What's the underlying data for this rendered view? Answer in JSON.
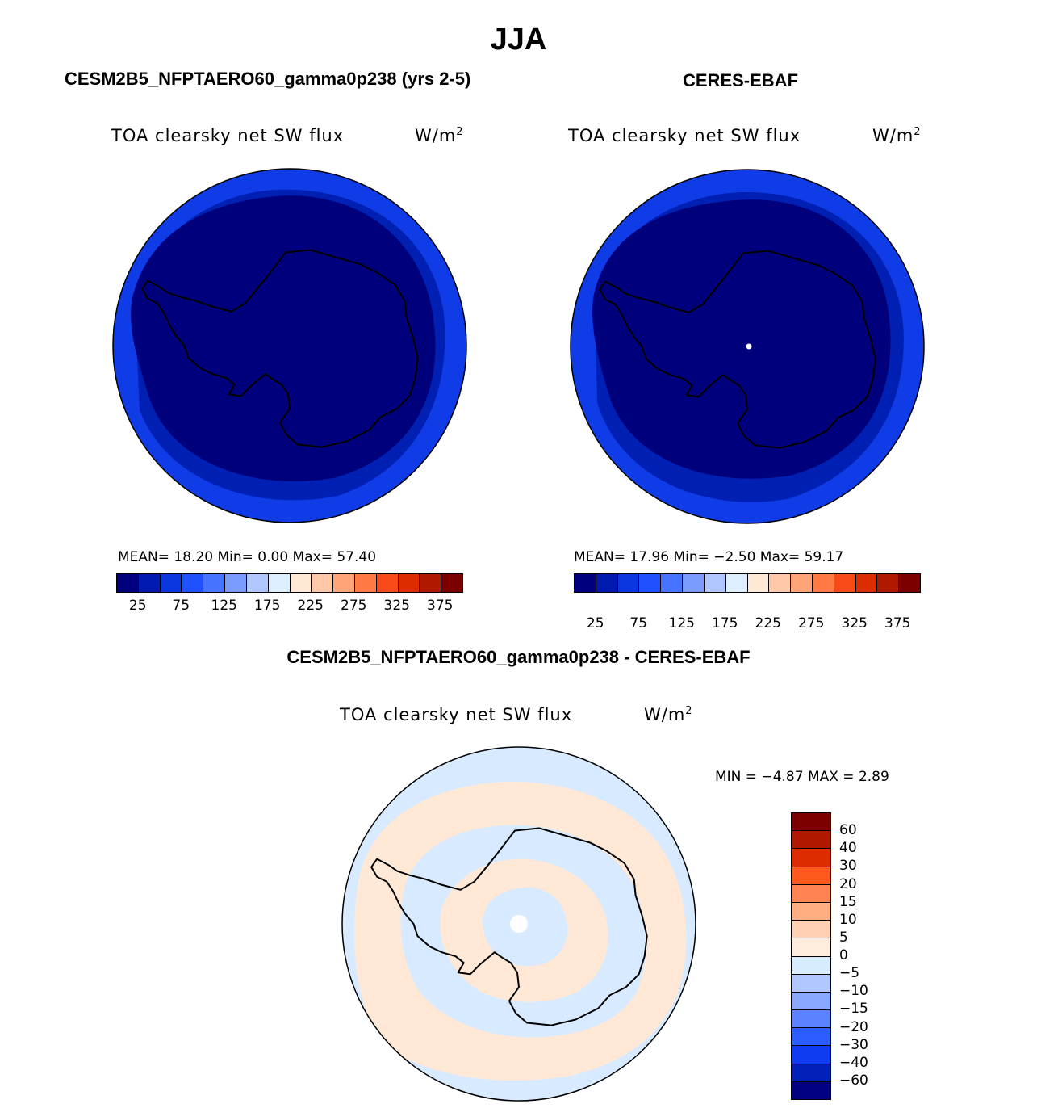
{
  "main_title": "JJA",
  "panels": [
    {
      "title": "CESM2B5_NFPTAERO60_gamma0p238 (yrs 2-5)",
      "var_label": "TOA clearsky net SW flux",
      "unit_base": "W/m",
      "unit_exp": "2",
      "stats": "MEAN=   18.20   Min=     0.00   Max=   57.40"
    },
    {
      "title": "CERES-EBAF",
      "var_label": "TOA clearsky net SW flux",
      "unit_base": "W/m",
      "unit_exp": "2",
      "stats": "MEAN=   17.96   Min=   −2.50   Max=   59.17"
    },
    {
      "title": "CESM2B5_NFPTAERO60_gamma0p238 - CERES-EBAF",
      "var_label": "TOA clearsky net SW flux",
      "unit_base": "W/m",
      "unit_exp": "2",
      "stats": "MIN =   −4.87 MAX =    2.89"
    }
  ],
  "colorbar_main": {
    "colors": [
      "#00007f",
      "#0019b0",
      "#0a36e0",
      "#1e50ff",
      "#4673ff",
      "#7b9cff",
      "#b0c8ff",
      "#ddeeff",
      "#ffe9d4",
      "#ffc8a8",
      "#ffa478",
      "#ff7a44",
      "#f84a18",
      "#dc2c00",
      "#b01800",
      "#7d0000"
    ],
    "tick_labels": [
      "25",
      "75",
      "125",
      "175",
      "225",
      "275",
      "325",
      "375"
    ]
  },
  "colorbar_diff": {
    "colors": [
      "#7d0000",
      "#b01800",
      "#dc2c00",
      "#ff5a1e",
      "#ff8452",
      "#ffae82",
      "#ffd0b4",
      "#ffecdc",
      "#d8ecff",
      "#b0c8ff",
      "#8aa8ff",
      "#5c82ff",
      "#2d5cff",
      "#0f3cf0",
      "#0020b8",
      "#000080"
    ],
    "tick_labels": [
      "60",
      "40",
      "30",
      "20",
      "15",
      "10",
      "5",
      "0",
      "−5",
      "−10",
      "−15",
      "−20",
      "−30",
      "−40",
      "−60"
    ]
  },
  "map_colors": {
    "outer_ring": "#0f3ce6",
    "middle_ring": "#0020b4",
    "interior": "#00007c",
    "diff_warm": "#ffe9d6",
    "diff_cool": "#d8eaff",
    "coast": "#000000"
  }
}
